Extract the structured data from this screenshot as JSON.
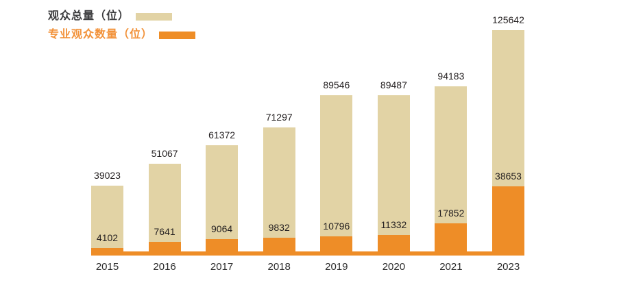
{
  "legend": {
    "items": [
      {
        "label": "观众总量（位）",
        "swatch_color": "#e2d3a5",
        "text_color": "#3d3d3f"
      },
      {
        "label": "专业观众数量（位）",
        "swatch_color": "#ee8d27",
        "text_color": "#f2923a"
      }
    ]
  },
  "colors": {
    "total_bar": "#e2d3a5",
    "professional_bar": "#ee8d27",
    "value_label_text": "#231f20",
    "axis_label_text": "#2b2b2b",
    "background": "#ffffff"
  },
  "chart_data": {
    "type": "bar",
    "subtype": "overlaid-two-series-with-data-labels",
    "title": "",
    "xlabel": "",
    "ylabel": "",
    "categories": [
      "2015",
      "2016",
      "2017",
      "2018",
      "2019",
      "2020",
      "2021",
      "2023"
    ],
    "series": [
      {
        "name": "观众总量（位）",
        "color": "#e2d3a5",
        "values": [
          39023,
          51067,
          61372,
          71297,
          89546,
          89487,
          94183,
          125642
        ]
      },
      {
        "name": "专业观众数量（位）",
        "color": "#ee8d27",
        "values": [
          4102,
          7641,
          9064,
          9832,
          10796,
          11332,
          17852,
          38653
        ]
      }
    ],
    "ylim": [
      0,
      125642
    ],
    "grid": false,
    "axes_visible": false,
    "data_labels": true,
    "legend_position": "top-left",
    "baseline_strip": true
  }
}
